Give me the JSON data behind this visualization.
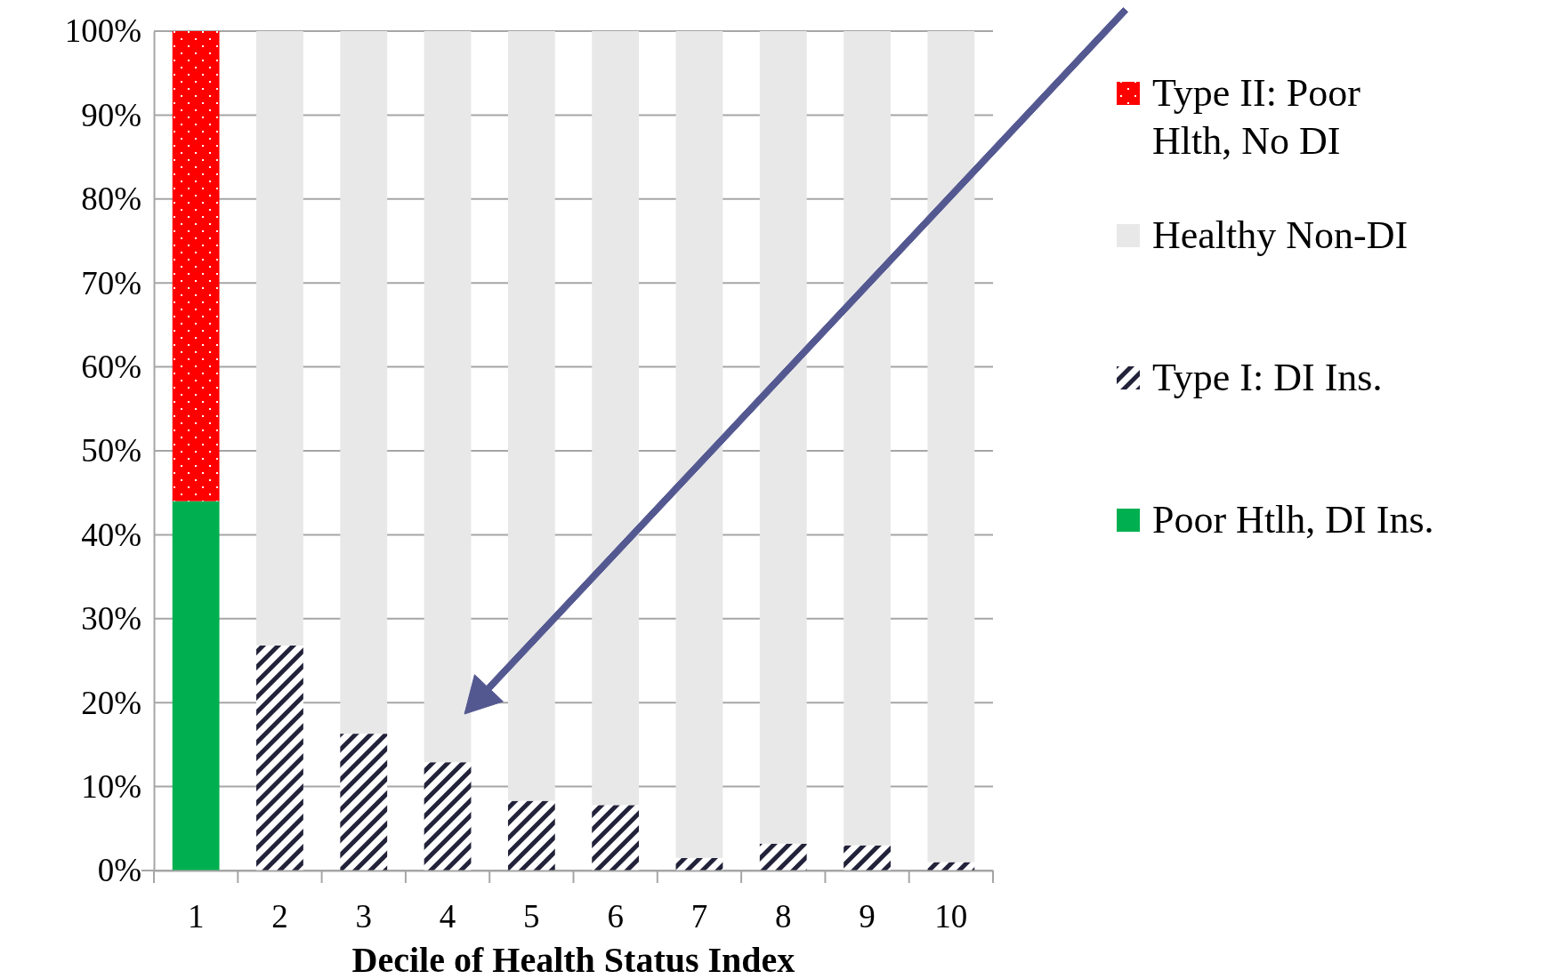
{
  "chart_data": {
    "type": "bar",
    "stacked": true,
    "xlabel": "Decile of Health Status Index",
    "categories": [
      "1",
      "2",
      "3",
      "4",
      "5",
      "6",
      "7",
      "8",
      "9",
      "10"
    ],
    "series": [
      {
        "name": "Poor Htlh, DI Ins.",
        "color": "#00b050",
        "values": [
          44,
          0,
          0,
          0,
          0,
          0,
          0,
          0,
          0,
          0
        ]
      },
      {
        "name": "Type I: DI Ins.",
        "color": "#22223a",
        "values": [
          0,
          26.8,
          16.3,
          12.9,
          8.3,
          7.8,
          1.5,
          3.2,
          3.0,
          1.0
        ]
      },
      {
        "name": "Healthy Non-DI",
        "color": "#e8e8e8",
        "values": [
          0,
          73.2,
          83.7,
          87.1,
          91.7,
          92.2,
          98.5,
          96.8,
          97.0,
          99.0
        ]
      },
      {
        "name": "Type II: Poor Hlth, No DI",
        "color": "#ff0000",
        "values": [
          56,
          0,
          0,
          0,
          0,
          0,
          0,
          0,
          0,
          0
        ]
      }
    ],
    "ylim": [
      0,
      100
    ],
    "yticks": [
      {
        "value": 0,
        "label": "0%"
      },
      {
        "value": 10,
        "label": "10%"
      },
      {
        "value": 20,
        "label": "20%"
      },
      {
        "value": 30,
        "label": "30%"
      },
      {
        "value": 40,
        "label": "40%"
      },
      {
        "value": 50,
        "label": "50%"
      },
      {
        "value": 60,
        "label": "60%"
      },
      {
        "value": 70,
        "label": "70%"
      },
      {
        "value": 80,
        "label": "80%"
      },
      {
        "value": 90,
        "label": "90%"
      },
      {
        "value": 100,
        "label": "100%"
      }
    ],
    "grid": "y",
    "legend": "right"
  }
}
